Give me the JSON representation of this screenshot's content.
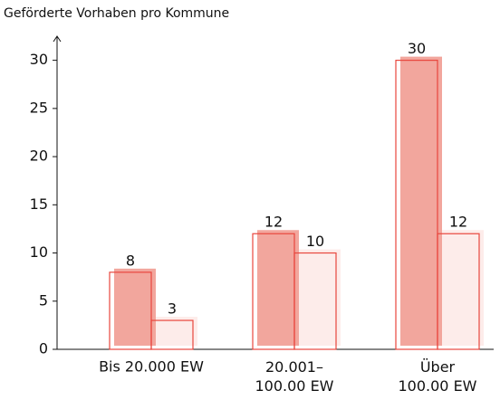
{
  "chart_data": {
    "type": "bar",
    "title": "Geförderte Vorhaben pro Kommune",
    "categories": [
      "Bis 20.000 EW",
      "20.001–\n100.00 EW",
      "Über\n100.00 EW"
    ],
    "series": [
      {
        "color": "#f2a69d",
        "values": [
          8,
          12,
          30
        ]
      },
      {
        "color": "#fdecea",
        "values": [
          3,
          10,
          12
        ]
      }
    ],
    "edge_color": "#e8473e",
    "ylim": [
      0,
      32.5
    ],
    "yticks": [
      0,
      5,
      10,
      15,
      20,
      25,
      30
    ],
    "grid": false
  }
}
